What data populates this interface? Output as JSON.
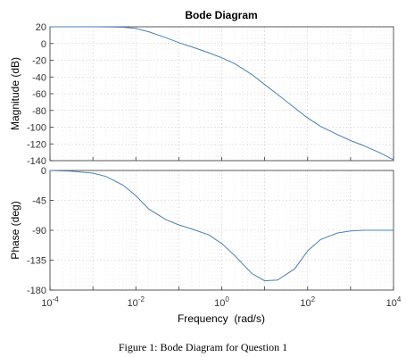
{
  "chart_data": {
    "type": "line",
    "title": "Bode Diagram",
    "xlabel": "Frequency  (rad/s)",
    "xscale": "log",
    "xlim": [
      0.0001,
      10000
    ],
    "x_tick_labels": [
      {
        "base": "10",
        "exp": "-4"
      },
      {
        "base": "10",
        "exp": "-2"
      },
      {
        "base": "10",
        "exp": "0"
      },
      {
        "base": "10",
        "exp": "2"
      },
      {
        "base": "10",
        "exp": "4"
      }
    ],
    "grid": true,
    "line_color": "#4a7fb5",
    "panels": [
      {
        "name": "magnitude",
        "ylabel": "Magnitude (dB)",
        "ylim": [
          -140,
          20
        ],
        "yticks": [
          20,
          0,
          -20,
          -40,
          -60,
          -80,
          -100,
          -120,
          -140
        ],
        "x": [
          0.0001,
          0.001,
          0.003,
          0.005,
          0.01,
          0.02,
          0.05,
          0.1,
          0.2,
          0.5,
          1,
          2,
          5,
          10,
          20,
          50,
          100,
          200,
          500,
          1000,
          2000,
          5000,
          10000
        ],
        "y": [
          20,
          20,
          19.8,
          19.5,
          18,
          14,
          7,
          1,
          -4,
          -11,
          -17,
          -24,
          -37,
          -49,
          -61,
          -77,
          -89,
          -99,
          -109,
          -116,
          -122,
          -131,
          -139
        ]
      },
      {
        "name": "phase",
        "ylabel": "Phase (deg)",
        "ylim": [
          -180,
          0
        ],
        "yticks": [
          0,
          -45,
          -90,
          -135,
          -180
        ],
        "x": [
          0.0001,
          0.0003,
          0.001,
          0.002,
          0.005,
          0.01,
          0.02,
          0.05,
          0.1,
          0.2,
          0.5,
          1,
          2,
          5,
          10,
          20,
          50,
          100,
          200,
          500,
          1000,
          2000,
          5000,
          10000
        ],
        "y": [
          0,
          -1,
          -4,
          -9,
          -22,
          -38,
          -58,
          -74,
          -82,
          -88,
          -97,
          -110,
          -128,
          -155,
          -166,
          -165,
          -148,
          -121,
          -104,
          -94,
          -91,
          -90,
          -90,
          -90
        ]
      }
    ]
  },
  "caption": "Figure 1: Bode Diagram for Question 1"
}
